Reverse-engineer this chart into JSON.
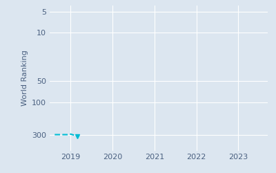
{
  "ylabel": "World Ranking",
  "background_color": "#dce6f0",
  "plot_bg_color": "#dce6f0",
  "line_color": "#00bcd4",
  "yticks": [
    300,
    100,
    50,
    10,
    5
  ],
  "ylim_min": 4,
  "ylim_max": 500,
  "xlim_min": 2018.5,
  "xlim_max": 2023.7,
  "xticks": [
    2019,
    2020,
    2021,
    2022,
    2023
  ],
  "x_data": [
    2018.62,
    2018.72,
    2018.82,
    2018.92,
    2019.0,
    2019.08,
    2019.15
  ],
  "y_data": [
    295,
    295,
    295,
    295,
    290,
    300,
    310
  ]
}
